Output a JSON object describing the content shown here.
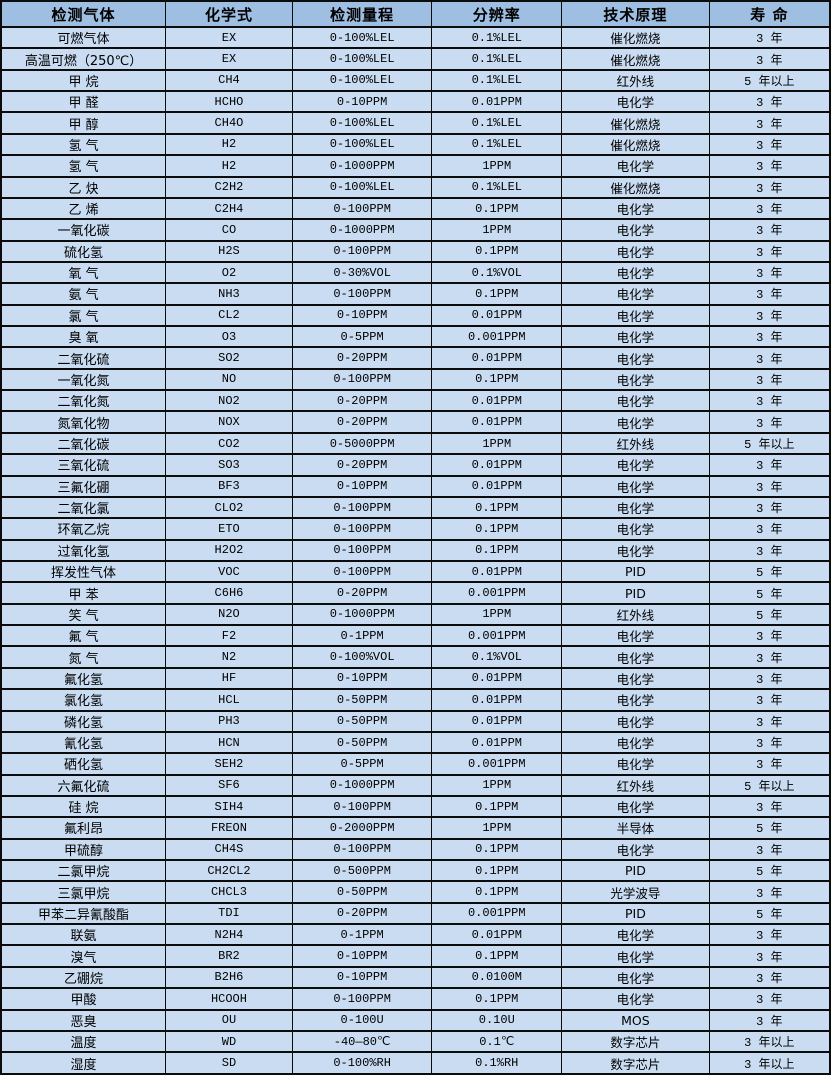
{
  "colors": {
    "header_bg": "#9fbfe2",
    "row_bg": "#c9dcf1",
    "grid_line": "#0c0c0c",
    "text": "#000000"
  },
  "table": {
    "columns": [
      "检测气体",
      "化学式",
      "检测量程",
      "分辨率",
      "技术原理",
      "寿 命"
    ],
    "rows": [
      [
        "可燃气体",
        "EX",
        "0-100%LEL",
        "0.1%LEL",
        "催化燃烧",
        "3 年"
      ],
      [
        "高温可燃（250℃）",
        "EX",
        "0-100%LEL",
        "0.1%LEL",
        "催化燃烧",
        "3 年"
      ],
      [
        "甲 烷",
        "CH4",
        "0-100%LEL",
        "0.1%LEL",
        "红外线",
        "5 年以上"
      ],
      [
        "甲 醛",
        "HCHO",
        "0-10PPM",
        "0.01PPM",
        "电化学",
        "3 年"
      ],
      [
        "甲 醇",
        "CH4O",
        "0-100%LEL",
        "0.1%LEL",
        "催化燃烧",
        "3 年"
      ],
      [
        "氢 气",
        "H2",
        "0-100%LEL",
        "0.1%LEL",
        "催化燃烧",
        "3 年"
      ],
      [
        "氢 气",
        "H2",
        "0-1000PPM",
        "1PPM",
        "电化学",
        "3 年"
      ],
      [
        "乙 炔",
        "C2H2",
        "0-100%LEL",
        "0.1%LEL",
        "催化燃烧",
        "3 年"
      ],
      [
        "乙 烯",
        "C2H4",
        "0-100PPM",
        "0.1PPM",
        "电化学",
        "3 年"
      ],
      [
        "一氧化碳",
        "CO",
        "0-1000PPM",
        "1PPM",
        "电化学",
        "3 年"
      ],
      [
        "硫化氢",
        "H2S",
        "0-100PPM",
        "0.1PPM",
        "电化学",
        "3 年"
      ],
      [
        "氧 气",
        "O2",
        "0-30%VOL",
        "0.1%VOL",
        "电化学",
        "3 年"
      ],
      [
        "氨 气",
        "NH3",
        "0-100PPM",
        "0.1PPM",
        "电化学",
        "3 年"
      ],
      [
        "氯 气",
        "CL2",
        "0-10PPM",
        "0.01PPM",
        "电化学",
        "3 年"
      ],
      [
        "臭 氧",
        "O3",
        "0-5PPM",
        "0.001PPM",
        "电化学",
        "3 年"
      ],
      [
        "二氧化硫",
        "SO2",
        "0-20PPM",
        "0.01PPM",
        "电化学",
        "3 年"
      ],
      [
        "一氧化氮",
        "NO",
        "0-100PPM",
        "0.1PPM",
        "电化学",
        "3 年"
      ],
      [
        "二氧化氮",
        "NO2",
        "0-20PPM",
        "0.01PPM",
        "电化学",
        "3 年"
      ],
      [
        "氮氧化物",
        "NOX",
        "0-20PPM",
        "0.01PPM",
        "电化学",
        "3 年"
      ],
      [
        "二氧化碳",
        "CO2",
        "0-5000PPM",
        "1PPM",
        "红外线",
        "5 年以上"
      ],
      [
        "三氧化硫",
        "SO3",
        "0-20PPM",
        "0.01PPM",
        "电化学",
        "3 年"
      ],
      [
        "三氟化硼",
        "BF3",
        "0-10PPM",
        "0.01PPM",
        "电化学",
        "3 年"
      ],
      [
        "二氧化氯",
        "CLO2",
        "0-100PPM",
        "0.1PPM",
        "电化学",
        "3 年"
      ],
      [
        "环氧乙烷",
        "ETO",
        "0-100PPM",
        "0.1PPM",
        "电化学",
        "3 年"
      ],
      [
        "过氧化氢",
        "H2O2",
        "0-100PPM",
        "0.1PPM",
        "电化学",
        "3 年"
      ],
      [
        "挥发性气体",
        "VOC",
        "0-100PPM",
        "0.01PPM",
        "PID",
        "5 年"
      ],
      [
        "甲 苯",
        "C6H6",
        "0-20PPM",
        "0.001PPM",
        "PID",
        "5 年"
      ],
      [
        "笑 气",
        "N2O",
        "0-1000PPM",
        "1PPM",
        "红外线",
        "5 年"
      ],
      [
        "氟 气",
        "F2",
        "0-1PPM",
        "0.001PPM",
        "电化学",
        "3 年"
      ],
      [
        "氮 气",
        "N2",
        "0-100%VOL",
        "0.1%VOL",
        "电化学",
        "3 年"
      ],
      [
        "氟化氢",
        "HF",
        "0-10PPM",
        "0.01PPM",
        "电化学",
        "3 年"
      ],
      [
        "氯化氢",
        "HCL",
        "0-50PPM",
        "0.01PPM",
        "电化学",
        "3 年"
      ],
      [
        "磷化氢",
        "PH3",
        "0-50PPM",
        "0.01PPM",
        "电化学",
        "3 年"
      ],
      [
        "氰化氢",
        "HCN",
        "0-50PPM",
        "0.01PPM",
        "电化学",
        "3 年"
      ],
      [
        "硒化氢",
        "SEH2",
        "0-5PPM",
        "0.001PPM",
        "电化学",
        "3 年"
      ],
      [
        "六氟化硫",
        "SF6",
        "0-1000PPM",
        "1PPM",
        "红外线",
        "5 年以上"
      ],
      [
        "硅 烷",
        "SIH4",
        "0-100PPM",
        "0.1PPM",
        "电化学",
        "3 年"
      ],
      [
        "氟利昂",
        "FREON",
        "0-2000PPM",
        "1PPM",
        "半导体",
        "5 年"
      ],
      [
        "甲硫醇",
        "CH4S",
        "0-100PPM",
        "0.1PPM",
        "电化学",
        "3 年"
      ],
      [
        "二氯甲烷",
        "CH2CL2",
        "0-500PPM",
        "0.1PPM",
        "PID",
        "5 年"
      ],
      [
        "三氯甲烷",
        "CHCL3",
        "0-50PPM",
        "0.1PPM",
        "光学波导",
        "3 年"
      ],
      [
        "甲苯二异氰酸酯",
        "TDI",
        "0-20PPM",
        "0.001PPM",
        "PID",
        "5 年"
      ],
      [
        "联氨",
        "N2H4",
        "0-1PPM",
        "0.01PPM",
        "电化学",
        "3 年"
      ],
      [
        "溴气",
        "BR2",
        "0-10PPM",
        "0.1PPM",
        "电化学",
        "3 年"
      ],
      [
        "乙硼烷",
        "B2H6",
        "0-10PPM",
        "0.0100M",
        "电化学",
        "3 年"
      ],
      [
        "甲酸",
        "HCOOH",
        "0-100PPM",
        "0.1PPM",
        "电化学",
        "3 年"
      ],
      [
        "恶臭",
        "OU",
        "0-100U",
        "0.10U",
        "MOS",
        "3 年"
      ],
      [
        "温度",
        "WD",
        "-40—80℃",
        "0.1℃",
        "数字芯片",
        "3 年以上"
      ],
      [
        "湿度",
        "SD",
        "0-100%RH",
        "0.1%RH",
        "数字芯片",
        "3 年以上"
      ]
    ],
    "column_widths_pct": [
      19.86,
      15.28,
      16.85,
      15.64,
      17.81,
      14.56
    ]
  }
}
